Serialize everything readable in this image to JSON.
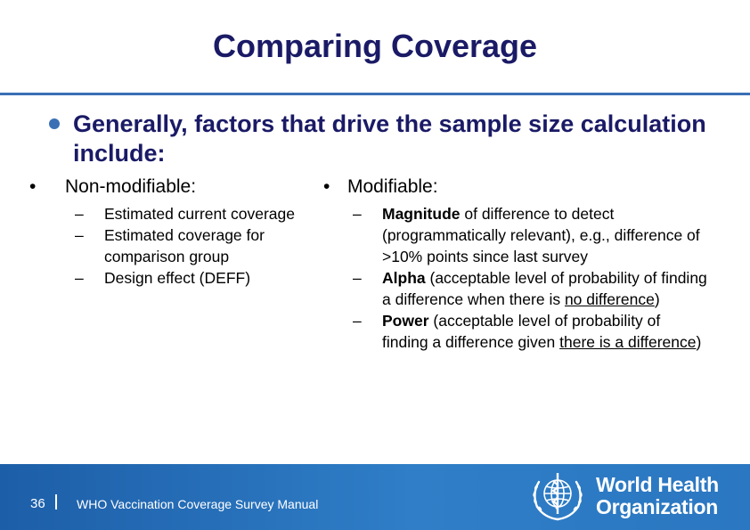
{
  "slide": {
    "title": "Comparing Coverage",
    "main_bullet": "Generally, factors that drive the sample size calculation include:",
    "left_column": {
      "bullet": "•",
      "heading": "Non-modifiable:",
      "items": [
        "Estimated current coverage",
        "Estimated coverage for comparison group",
        "Design effect (DEFF)"
      ]
    },
    "right_column": {
      "bullet": "•",
      "heading": "Modifiable:",
      "items": [
        {
          "bold": "Magnitude",
          "rest": " of difference to detect (programmatically relevant), e.g., difference of >10% points since last survey"
        },
        {
          "bold": "Alpha",
          "rest": " (acceptable level of probability of finding a difference when there is ",
          "underline": "no difference",
          "end": ")"
        },
        {
          "bold": "Power",
          "rest": " (acceptable level of probability of finding a difference given ",
          "underline": "there is a difference",
          "end": ")"
        }
      ]
    },
    "dash": "–"
  },
  "footer": {
    "page_number": "36",
    "text": "WHO Vaccination Coverage Survey Manual",
    "logo_line1": "World Health",
    "logo_line2": "Organization"
  },
  "colors": {
    "title": "#1a1a66",
    "accent": "#3a6fb5",
    "footer_bg": "#2f7ec7"
  }
}
